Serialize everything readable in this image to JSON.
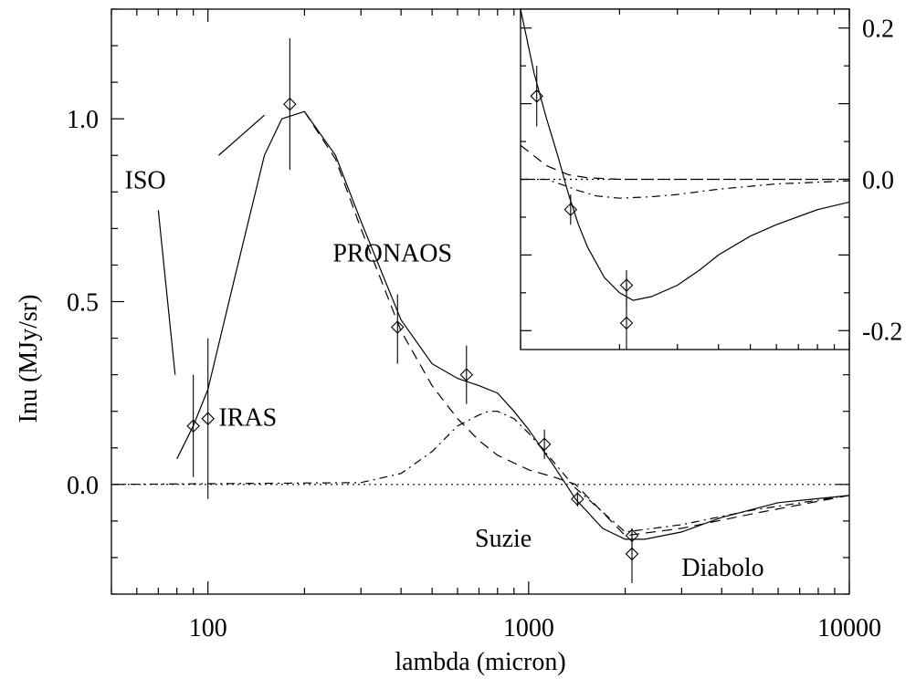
{
  "chart_data": [
    {
      "type": "line",
      "title": "",
      "xlabel": "lambda (micron)",
      "ylabel": "Inu (MJy/sr)",
      "xscale": "log",
      "xlim": [
        50,
        10000
      ],
      "ylim": [
        -0.3,
        1.3
      ],
      "xticks": [
        {
          "v": 100,
          "label": "100"
        },
        {
          "v": 1000,
          "label": "1000"
        },
        {
          "v": 10000,
          "label": "10000"
        }
      ],
      "yticks": [
        {
          "v": 0.0,
          "label": "0.0"
        },
        {
          "v": 0.5,
          "label": "0.5"
        },
        {
          "v": 1.0,
          "label": "1.0"
        }
      ],
      "series": [
        {
          "style": "solid",
          "x": [
            80,
            90,
            100,
            120,
            150,
            170,
            200,
            250,
            300,
            400,
            500,
            600,
            700,
            800,
            900,
            1000,
            1200,
            1400,
            1700,
            2000,
            2300,
            3000,
            4000,
            6000,
            10000
          ],
          "y": [
            0.07,
            0.16,
            0.26,
            0.55,
            0.9,
            1.0,
            1.02,
            0.9,
            0.72,
            0.45,
            0.33,
            0.29,
            0.27,
            0.25,
            0.2,
            0.15,
            0.05,
            -0.04,
            -0.12,
            -0.15,
            -0.15,
            -0.13,
            -0.09,
            -0.05,
            -0.03
          ]
        },
        {
          "style": "dashed",
          "x": [
            200,
            250,
            300,
            400,
            500,
            600,
            700,
            800,
            1000,
            1200,
            1400,
            2000,
            3000,
            5000,
            10000
          ],
          "y": [
            1.02,
            0.89,
            0.7,
            0.42,
            0.27,
            0.18,
            0.12,
            0.08,
            0.04,
            0.02,
            0.0,
            -0.14,
            -0.12,
            -0.08,
            -0.03
          ]
        },
        {
          "style": "dash-dot",
          "x": [
            50,
            300,
            400,
            500,
            600,
            700,
            750,
            800,
            900,
            1000,
            1200,
            1400,
            2000,
            3000,
            5000,
            10000
          ],
          "y": [
            0.0,
            0.005,
            0.03,
            0.09,
            0.16,
            0.19,
            0.2,
            0.2,
            0.18,
            0.14,
            0.06,
            -0.01,
            -0.13,
            -0.11,
            -0.07,
            -0.03
          ]
        },
        {
          "style": "dotted",
          "x": [
            50,
            10000
          ],
          "y": [
            0.0,
            0.0
          ]
        }
      ],
      "points": [
        {
          "x": 90,
          "y": 0.16,
          "ylo": 0.02,
          "yhi": 0.3
        },
        {
          "x": 100,
          "y": 0.18,
          "ylo": -0.04,
          "yhi": 0.4
        },
        {
          "x": 180,
          "y": 1.04,
          "ylo": 0.86,
          "yhi": 1.22
        },
        {
          "x": 390,
          "y": 0.43,
          "ylo": 0.33,
          "yhi": 0.52
        },
        {
          "x": 640,
          "y": 0.3,
          "ylo": 0.22,
          "yhi": 0.38
        },
        {
          "x": 1120,
          "y": 0.11,
          "ylo": 0.07,
          "yhi": 0.15
        },
        {
          "x": 1420,
          "y": -0.04,
          "ylo": -0.06,
          "yhi": -0.02
        },
        {
          "x": 2100,
          "y": -0.14,
          "ylo": -0.17,
          "yhi": -0.12
        },
        {
          "x": 2100,
          "y": -0.19,
          "ylo": -0.27,
          "yhi": -0.13
        }
      ],
      "annotations": [
        {
          "text": "ISO",
          "x": 55,
          "y": 0.81
        },
        {
          "text": "PRONAOS",
          "x": 245,
          "y": 0.61
        },
        {
          "text": "IRAS",
          "x": 108,
          "y": 0.16
        },
        {
          "text": "Suzie",
          "x": 680,
          "y": -0.17
        },
        {
          "text": "Diabolo",
          "x": 3000,
          "y": -0.25
        }
      ],
      "leaders": [
        {
          "x1": 70,
          "y1": 0.75,
          "x2": 79,
          "y2": 0.3
        },
        {
          "x1": 108,
          "y1": 0.9,
          "x2": 150,
          "y2": 1.01
        }
      ]
    },
    {
      "type": "line",
      "title": "",
      "xlabel": "",
      "ylabel": "",
      "xscale": "log",
      "xlim": [
        1000,
        10000
      ],
      "ylim": [
        -0.225,
        0.225
      ],
      "yticks": [
        {
          "v": 0.2,
          "label": "0.2"
        },
        {
          "v": 0.0,
          "label": "0.0"
        },
        {
          "v": -0.2,
          "label": "-0.2"
        }
      ],
      "series": [
        {
          "style": "solid",
          "x": [
            1000,
            1100,
            1200,
            1300,
            1400,
            1500,
            1600,
            1800,
            2000,
            2200,
            2500,
            3000,
            3500,
            4000,
            5000,
            6000,
            8000,
            10000
          ],
          "y": [
            0.225,
            0.14,
            0.08,
            0.03,
            -0.02,
            -0.06,
            -0.09,
            -0.13,
            -0.15,
            -0.16,
            -0.155,
            -0.14,
            -0.12,
            -0.1,
            -0.075,
            -0.06,
            -0.04,
            -0.03
          ]
        },
        {
          "style": "dashed",
          "x": [
            1000,
            1200,
            1400,
            1600,
            2000,
            2500,
            3000,
            4000,
            10000
          ],
          "y": [
            0.045,
            0.018,
            0.006,
            0.002,
            0.0,
            0.0,
            0.0,
            0.0,
            0.0
          ]
        },
        {
          "style": "dash-dot",
          "x": [
            1000,
            1200,
            1400,
            1500,
            1700,
            2000,
            2500,
            3000,
            4000,
            6000,
            10000
          ],
          "y": [
            0.0,
            0.0,
            -0.01,
            -0.015,
            -0.022,
            -0.025,
            -0.023,
            -0.02,
            -0.013,
            -0.006,
            -0.002
          ]
        },
        {
          "style": "dotted",
          "x": [
            1000,
            10000
          ],
          "y": [
            0.0,
            0.0
          ]
        }
      ],
      "points": [
        {
          "x": 1120,
          "y": 0.11,
          "ylo": 0.07,
          "yhi": 0.15
        },
        {
          "x": 1420,
          "y": -0.04,
          "ylo": -0.06,
          "yhi": -0.02
        },
        {
          "x": 2100,
          "y": -0.14,
          "ylo": -0.17,
          "yhi": -0.12
        },
        {
          "x": 2100,
          "y": -0.19,
          "ylo": -0.27,
          "yhi": -0.13
        }
      ]
    }
  ]
}
